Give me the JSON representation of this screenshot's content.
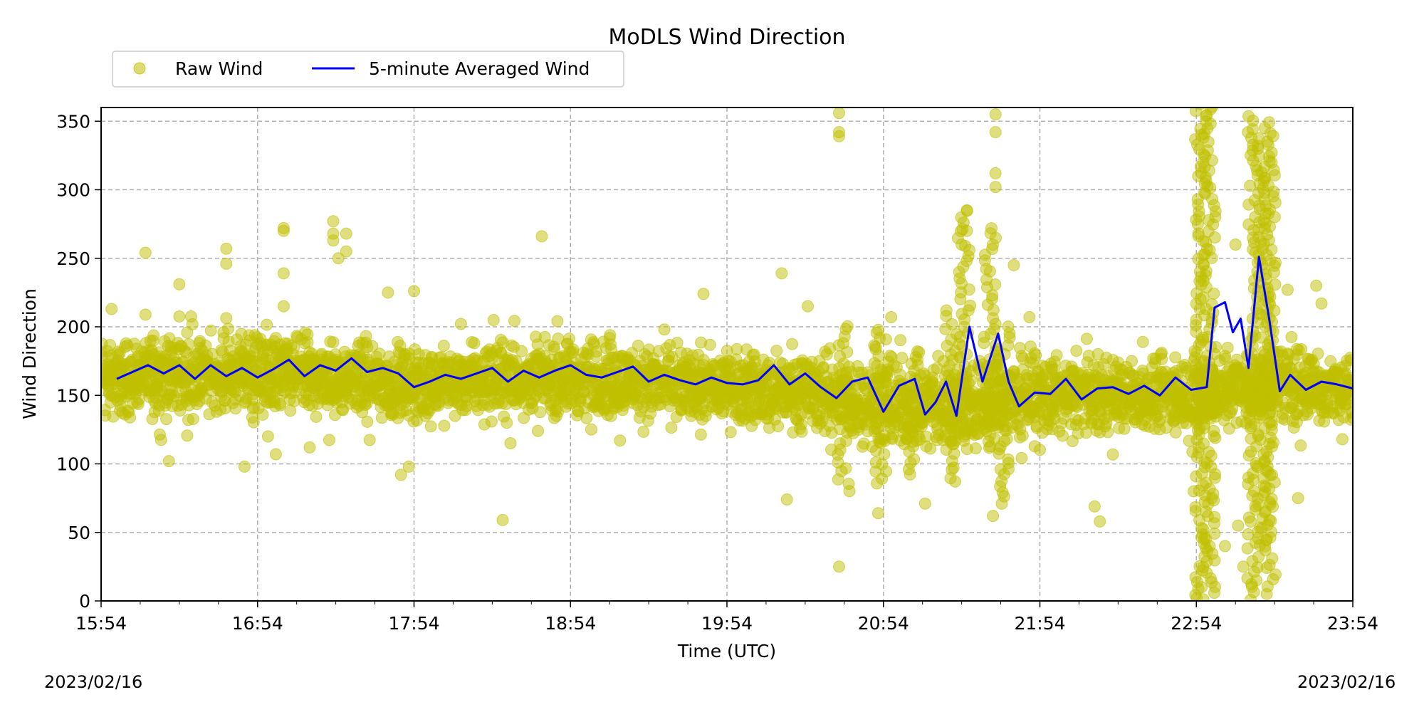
{
  "chart_data": {
    "type": "scatter",
    "title": "MoDLS Wind Direction",
    "xlabel": "Time (UTC)",
    "ylabel": "Wind Direction",
    "date_labels": {
      "start": "2023/02/16",
      "end": "2023/02/16"
    },
    "x_ticks": [
      "15:54",
      "16:54",
      "17:54",
      "18:54",
      "19:54",
      "20:54",
      "21:54",
      "22:54",
      "23:54"
    ],
    "xlim": [
      "15:54",
      "23:54"
    ],
    "y_ticks": [
      0,
      50,
      100,
      150,
      200,
      250,
      300,
      350
    ],
    "ylim": [
      0,
      360
    ],
    "grid": true,
    "legend": {
      "placement": "top-left, above plot",
      "ncol": 2
    },
    "series": [
      {
        "name": "Raw Wind",
        "kind": "scatter",
        "color": "#bfbf00",
        "band": [
          [
            "15:54",
            125,
            200
          ],
          [
            "16:24",
            125,
            205
          ],
          [
            "16:54",
            125,
            205
          ],
          [
            "17:24",
            125,
            200
          ],
          [
            "17:54",
            120,
            195
          ],
          [
            "18:24",
            125,
            200
          ],
          [
            "18:54",
            125,
            200
          ],
          [
            "19:24",
            125,
            195
          ],
          [
            "19:54",
            120,
            190
          ],
          [
            "20:24",
            115,
            190
          ],
          [
            "20:54",
            100,
            185
          ],
          [
            "21:24",
            95,
            190
          ],
          [
            "21:54",
            110,
            190
          ],
          [
            "22:24",
            115,
            185
          ],
          [
            "22:54",
            110,
            195
          ],
          [
            "23:24",
            120,
            195
          ],
          [
            "23:54",
            125,
            190
          ]
        ],
        "outliers": [
          [
            "15:58",
            213
          ],
          [
            "16:11",
            254
          ],
          [
            "16:20",
            102
          ],
          [
            "16:24",
            231
          ],
          [
            "16:42",
            257
          ],
          [
            "16:42",
            246
          ],
          [
            "16:49",
            98
          ],
          [
            "16:58",
            120
          ],
          [
            "17:01",
            107
          ],
          [
            "17:04",
            272
          ],
          [
            "17:04",
            270
          ],
          [
            "17:04",
            239
          ],
          [
            "17:04",
            215
          ],
          [
            "17:14",
            112
          ],
          [
            "17:23",
            277
          ],
          [
            "17:23",
            268
          ],
          [
            "17:23",
            263
          ],
          [
            "17:25",
            250
          ],
          [
            "17:28",
            268
          ],
          [
            "17:28",
            255
          ],
          [
            "17:44",
            225
          ],
          [
            "17:49",
            92
          ],
          [
            "17:52",
            98
          ],
          [
            "17:54",
            226
          ],
          [
            "18:28",
            59
          ],
          [
            "18:43",
            266
          ],
          [
            "19:45",
            224
          ],
          [
            "20:15",
            239
          ],
          [
            "20:17",
            74
          ],
          [
            "20:25",
            215
          ],
          [
            "20:37",
            25
          ],
          [
            "20:37",
            339
          ],
          [
            "20:37",
            342
          ],
          [
            "20:37",
            356
          ],
          [
            "20:52",
            64
          ],
          [
            "20:57",
            207
          ],
          [
            "21:10",
            71
          ],
          [
            "21:24",
            260
          ],
          [
            "21:26",
            285
          ],
          [
            "21:26",
            270
          ],
          [
            "21:37",
            312
          ],
          [
            "21:37",
            302
          ],
          [
            "21:37",
            342
          ],
          [
            "21:37",
            355
          ],
          [
            "21:36",
            62
          ],
          [
            "21:44",
            245
          ],
          [
            "21:50",
            207
          ],
          [
            "22:15",
            69
          ],
          [
            "22:17",
            58
          ],
          [
            "22:53",
            80
          ],
          [
            "22:56",
            10
          ],
          [
            "22:57",
            45
          ],
          [
            "23:00",
            75
          ],
          [
            "23:05",
            40
          ],
          [
            "23:09",
            260
          ],
          [
            "23:10",
            55
          ],
          [
            "23:12",
            25
          ],
          [
            "23:14",
            90
          ],
          [
            "23:17",
            15
          ],
          [
            "23:21",
            5
          ],
          [
            "23:23",
            92
          ],
          [
            "23:29",
            227
          ],
          [
            "23:33",
            75
          ],
          [
            "23:40",
            230
          ],
          [
            "23:42",
            217
          ],
          [
            "23:50",
            118
          ]
        ],
        "bursts": [
          [
            "20:39",
            80,
            200
          ],
          [
            "20:53",
            85,
            200
          ],
          [
            "21:05",
            90,
            185
          ],
          [
            "21:20",
            85,
            210
          ],
          [
            "21:25",
            135,
            285
          ],
          [
            "21:35",
            110,
            272
          ],
          [
            "21:40",
            70,
            200
          ],
          [
            "22:56",
            0,
            360
          ],
          [
            "22:59",
            0,
            360
          ],
          [
            "23:16",
            0,
            355
          ],
          [
            "23:20",
            40,
            350
          ],
          [
            "23:22",
            10,
            340
          ]
        ]
      },
      {
        "name": "5-minute Averaged Wind",
        "kind": "line",
        "color": "#0000ff",
        "points": [
          [
            "16:00",
            162
          ],
          [
            "16:06",
            167
          ],
          [
            "16:12",
            172
          ],
          [
            "16:18",
            166
          ],
          [
            "16:24",
            172
          ],
          [
            "16:30",
            162
          ],
          [
            "16:36",
            172
          ],
          [
            "16:42",
            164
          ],
          [
            "16:48",
            170
          ],
          [
            "16:54",
            163
          ],
          [
            "17:00",
            169
          ],
          [
            "17:06",
            176
          ],
          [
            "17:12",
            164
          ],
          [
            "17:18",
            172
          ],
          [
            "17:24",
            168
          ],
          [
            "17:30",
            177
          ],
          [
            "17:36",
            167
          ],
          [
            "17:42",
            170
          ],
          [
            "17:48",
            166
          ],
          [
            "17:54",
            156
          ],
          [
            "18:00",
            160
          ],
          [
            "18:06",
            165
          ],
          [
            "18:12",
            162
          ],
          [
            "18:18",
            166
          ],
          [
            "18:24",
            170
          ],
          [
            "18:30",
            160
          ],
          [
            "18:36",
            168
          ],
          [
            "18:42",
            163
          ],
          [
            "18:48",
            168
          ],
          [
            "18:54",
            172
          ],
          [
            "19:00",
            165
          ],
          [
            "19:06",
            163
          ],
          [
            "19:12",
            167
          ],
          [
            "19:18",
            171
          ],
          [
            "19:24",
            160
          ],
          [
            "19:30",
            165
          ],
          [
            "19:36",
            161
          ],
          [
            "19:42",
            158
          ],
          [
            "19:48",
            163
          ],
          [
            "19:54",
            159
          ],
          [
            "20:00",
            158
          ],
          [
            "20:06",
            161
          ],
          [
            "20:12",
            172
          ],
          [
            "20:18",
            158
          ],
          [
            "20:24",
            166
          ],
          [
            "20:30",
            156
          ],
          [
            "20:36",
            148
          ],
          [
            "20:42",
            160
          ],
          [
            "20:48",
            163
          ],
          [
            "20:54",
            138
          ],
          [
            "21:00",
            157
          ],
          [
            "21:06",
            162
          ],
          [
            "21:10",
            136
          ],
          [
            "21:14",
            145
          ],
          [
            "21:18",
            160
          ],
          [
            "21:22",
            135
          ],
          [
            "21:27",
            200
          ],
          [
            "21:32",
            160
          ],
          [
            "21:38",
            195
          ],
          [
            "21:42",
            160
          ],
          [
            "21:46",
            142
          ],
          [
            "21:52",
            152
          ],
          [
            "21:58",
            151
          ],
          [
            "22:04",
            162
          ],
          [
            "22:10",
            147
          ],
          [
            "22:16",
            155
          ],
          [
            "22:22",
            156
          ],
          [
            "22:28",
            151
          ],
          [
            "22:34",
            157
          ],
          [
            "22:40",
            150
          ],
          [
            "22:46",
            163
          ],
          [
            "22:52",
            154
          ],
          [
            "22:58",
            156
          ],
          [
            "23:01",
            214
          ],
          [
            "23:05",
            218
          ],
          [
            "23:08",
            196
          ],
          [
            "23:11",
            206
          ],
          [
            "23:14",
            170
          ],
          [
            "23:18",
            251
          ],
          [
            "23:22",
            205
          ],
          [
            "23:26",
            153
          ],
          [
            "23:30",
            165
          ],
          [
            "23:36",
            154
          ],
          [
            "23:42",
            160
          ],
          [
            "23:48",
            158
          ],
          [
            "23:54",
            155
          ]
        ]
      }
    ]
  }
}
